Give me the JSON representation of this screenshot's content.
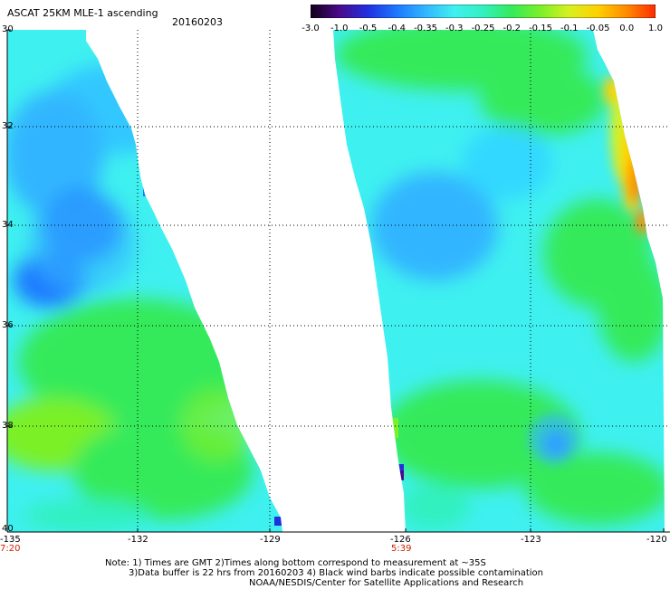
{
  "header": {
    "title": "ASCAT 25KM MLE-1 ascending",
    "date": "20160203"
  },
  "colorbar": {
    "labels": [
      "-3.0",
      "-1.0",
      "-0.5",
      "-0.4",
      "-0.35",
      "-0.3",
      "-0.25",
      "-0.2",
      "-0.15",
      "-0.1",
      "-0.05",
      "0.0",
      "1.0"
    ],
    "colors": [
      "#120018",
      "#4a0a8a",
      "#2030e0",
      "#1e78ff",
      "#33b5ff",
      "#3ff0f0",
      "#33f0c0",
      "#35ea5a",
      "#7cf028",
      "#d8f020",
      "#ffd000",
      "#ff8a00",
      "#ff2a00"
    ]
  },
  "left_panel": {
    "lat_labels": [
      "30",
      "32",
      "34",
      "36",
      "38",
      "40"
    ],
    "lon_labels": [
      "-135",
      "-132",
      "-129"
    ],
    "time_label": "7:20"
  },
  "right_panel": {
    "lon_labels": [
      "-126",
      "-123",
      "-120"
    ],
    "time_label": "5:39"
  },
  "notes": {
    "line1": "Note: 1) Times are GMT 2)Times along bottom correspond to measurement at ~35S",
    "line2": "3)Data buffer is 22 hrs from 20160203 4) Black wind barbs indicate possible contamination",
    "line3": "NOAA/NESDIS/Center for Satellite Applications and Research"
  }
}
